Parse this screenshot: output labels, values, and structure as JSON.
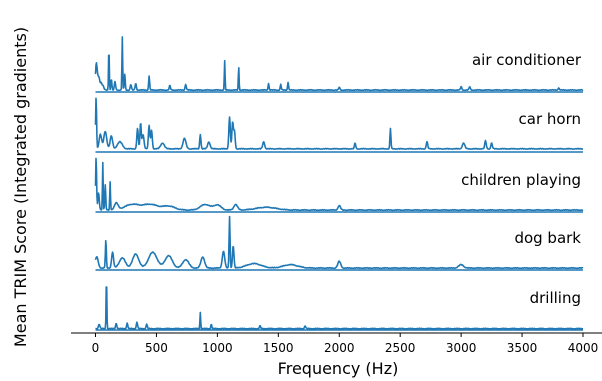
{
  "chart_data": {
    "type": "line",
    "title": "",
    "xlabel": "Frequency (Hz)",
    "ylabel": "Mean TRIM Score (Integrated gradients)",
    "xlim": [
      -100,
      4000
    ],
    "x_ticks": [
      0,
      500,
      1000,
      1500,
      2000,
      2500,
      3000,
      3500,
      4000
    ],
    "y_ticks_shown": false,
    "grid": false,
    "legend": "none",
    "line_color": "#1f77b4",
    "series": [
      {
        "name": "air conditioner",
        "baseline": 0.03,
        "peaks": [
          {
            "x": 5,
            "y": 0.35,
            "w": 6
          },
          {
            "x": 15,
            "y": 0.25,
            "w": 8
          },
          {
            "x": 30,
            "y": 0.18,
            "w": 6
          },
          {
            "x": 45,
            "y": 0.12,
            "w": 6
          },
          {
            "x": 60,
            "y": 0.08,
            "w": 8
          },
          {
            "x": 110,
            "y": 0.78,
            "w": 3
          },
          {
            "x": 130,
            "y": 0.2,
            "w": 4
          },
          {
            "x": 160,
            "y": 0.15,
            "w": 5
          },
          {
            "x": 220,
            "y": 0.95,
            "w": 3
          },
          {
            "x": 240,
            "y": 0.28,
            "w": 4
          },
          {
            "x": 290,
            "y": 0.1,
            "w": 5
          },
          {
            "x": 330,
            "y": 0.12,
            "w": 5
          },
          {
            "x": 440,
            "y": 0.25,
            "w": 4
          },
          {
            "x": 610,
            "y": 0.08,
            "w": 5
          },
          {
            "x": 740,
            "y": 0.1,
            "w": 5
          },
          {
            "x": 1060,
            "y": 0.52,
            "w": 3
          },
          {
            "x": 1175,
            "y": 0.42,
            "w": 3
          },
          {
            "x": 1420,
            "y": 0.12,
            "w": 4
          },
          {
            "x": 1520,
            "y": 0.1,
            "w": 4
          },
          {
            "x": 1580,
            "y": 0.14,
            "w": 4
          },
          {
            "x": 2000,
            "y": 0.05,
            "w": 5
          },
          {
            "x": 3000,
            "y": 0.06,
            "w": 5
          },
          {
            "x": 3070,
            "y": 0.06,
            "w": 5
          },
          {
            "x": 3800,
            "y": 0.04,
            "w": 5
          }
        ]
      },
      {
        "name": "car horn",
        "baseline": 0.05,
        "peaks": [
          {
            "x": 5,
            "y": 0.9,
            "w": 4
          },
          {
            "x": 40,
            "y": 0.25,
            "w": 10
          },
          {
            "x": 80,
            "y": 0.3,
            "w": 12
          },
          {
            "x": 130,
            "y": 0.22,
            "w": 10
          },
          {
            "x": 200,
            "y": 0.12,
            "w": 20
          },
          {
            "x": 345,
            "y": 0.35,
            "w": 6
          },
          {
            "x": 370,
            "y": 0.45,
            "w": 5
          },
          {
            "x": 390,
            "y": 0.25,
            "w": 8
          },
          {
            "x": 440,
            "y": 0.4,
            "w": 6
          },
          {
            "x": 460,
            "y": 0.32,
            "w": 6
          },
          {
            "x": 550,
            "y": 0.1,
            "w": 15
          },
          {
            "x": 730,
            "y": 0.18,
            "w": 12
          },
          {
            "x": 860,
            "y": 0.25,
            "w": 5
          },
          {
            "x": 930,
            "y": 0.12,
            "w": 10
          },
          {
            "x": 1100,
            "y": 0.55,
            "w": 6
          },
          {
            "x": 1125,
            "y": 0.45,
            "w": 6
          },
          {
            "x": 1140,
            "y": 0.3,
            "w": 6
          },
          {
            "x": 1380,
            "y": 0.12,
            "w": 8
          },
          {
            "x": 2130,
            "y": 0.1,
            "w": 5
          },
          {
            "x": 2420,
            "y": 0.35,
            "w": 4
          },
          {
            "x": 2720,
            "y": 0.12,
            "w": 6
          },
          {
            "x": 3020,
            "y": 0.1,
            "w": 10
          },
          {
            "x": 3200,
            "y": 0.14,
            "w": 6
          },
          {
            "x": 3250,
            "y": 0.1,
            "w": 6
          }
        ]
      },
      {
        "name": "children playing",
        "baseline": 0.03,
        "peaks": [
          {
            "x": 5,
            "y": 0.95,
            "w": 4
          },
          {
            "x": 25,
            "y": 0.3,
            "w": 6
          },
          {
            "x": 60,
            "y": 0.85,
            "w": 3
          },
          {
            "x": 80,
            "y": 0.45,
            "w": 4
          },
          {
            "x": 120,
            "y": 0.5,
            "w": 3
          },
          {
            "x": 170,
            "y": 0.12,
            "w": 15
          },
          {
            "x": 300,
            "y": 0.1,
            "w": 60
          },
          {
            "x": 450,
            "y": 0.1,
            "w": 60
          },
          {
            "x": 600,
            "y": 0.07,
            "w": 50
          },
          {
            "x": 900,
            "y": 0.1,
            "w": 40
          },
          {
            "x": 1000,
            "y": 0.09,
            "w": 30
          },
          {
            "x": 1150,
            "y": 0.1,
            "w": 15
          },
          {
            "x": 1400,
            "y": 0.05,
            "w": 80
          },
          {
            "x": 2000,
            "y": 0.08,
            "w": 10
          }
        ]
      },
      {
        "name": "dog bark",
        "baseline": 0.03,
        "peaks": [
          {
            "x": 10,
            "y": 0.2,
            "w": 12
          },
          {
            "x": 85,
            "y": 0.5,
            "w": 4
          },
          {
            "x": 140,
            "y": 0.28,
            "w": 8
          },
          {
            "x": 220,
            "y": 0.18,
            "w": 25
          },
          {
            "x": 330,
            "y": 0.25,
            "w": 25
          },
          {
            "x": 470,
            "y": 0.28,
            "w": 35
          },
          {
            "x": 600,
            "y": 0.22,
            "w": 30
          },
          {
            "x": 740,
            "y": 0.15,
            "w": 25
          },
          {
            "x": 880,
            "y": 0.2,
            "w": 15
          },
          {
            "x": 1050,
            "y": 0.3,
            "w": 10
          },
          {
            "x": 1100,
            "y": 0.92,
            "w": 4
          },
          {
            "x": 1130,
            "y": 0.4,
            "w": 6
          },
          {
            "x": 1300,
            "y": 0.08,
            "w": 60
          },
          {
            "x": 1600,
            "y": 0.06,
            "w": 60
          },
          {
            "x": 2000,
            "y": 0.12,
            "w": 12
          },
          {
            "x": 3000,
            "y": 0.06,
            "w": 20
          }
        ]
      },
      {
        "name": "drilling",
        "baseline": 0.02,
        "peaks": [
          {
            "x": 30,
            "y": 0.08,
            "w": 6
          },
          {
            "x": 90,
            "y": 0.95,
            "w": 3
          },
          {
            "x": 170,
            "y": 0.1,
            "w": 5
          },
          {
            "x": 260,
            "y": 0.1,
            "w": 5
          },
          {
            "x": 340,
            "y": 0.12,
            "w": 5
          },
          {
            "x": 420,
            "y": 0.08,
            "w": 5
          },
          {
            "x": 860,
            "y": 0.3,
            "w": 3
          },
          {
            "x": 950,
            "y": 0.08,
            "w": 4
          },
          {
            "x": 1350,
            "y": 0.05,
            "w": 5
          },
          {
            "x": 1720,
            "y": 0.05,
            "w": 5
          }
        ]
      }
    ]
  }
}
